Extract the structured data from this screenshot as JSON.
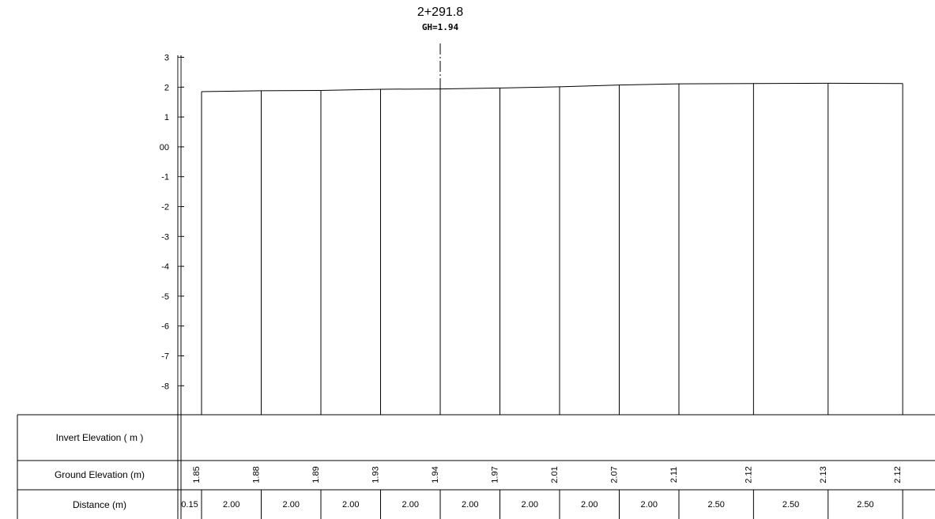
{
  "header": {
    "station": "2+291.8",
    "ground_height": "GH=1.94"
  },
  "y_axis": {
    "tick_labels": [
      "3",
      "2",
      "1",
      "00",
      "-1",
      "-2",
      "-3",
      "-4",
      "-5",
      "-6",
      "-7",
      "-8"
    ]
  },
  "table": {
    "rows": [
      {
        "label": "Invert Elevation ( m )"
      },
      {
        "label": "Ground Elevation (m)"
      },
      {
        "label": "Distance (m)"
      }
    ]
  },
  "chart_data": {
    "type": "line",
    "ylim": [
      -9,
      3
    ],
    "ground_elevations": [
      "1.85",
      "1.88",
      "1.89",
      "1.93",
      "1.94",
      "1.97",
      "2.01",
      "2.07",
      "2.11",
      "2.12",
      "2.13",
      "2.12"
    ],
    "distances": [
      "0.15",
      "2.00",
      "2.00",
      "2.00",
      "2.00",
      "2.00",
      "2.00",
      "2.00",
      "2.00",
      "2.50",
      "2.50",
      "2.50"
    ],
    "marker_index": 4
  },
  "colors": {
    "line": "#000000",
    "background": "#ffffff"
  }
}
